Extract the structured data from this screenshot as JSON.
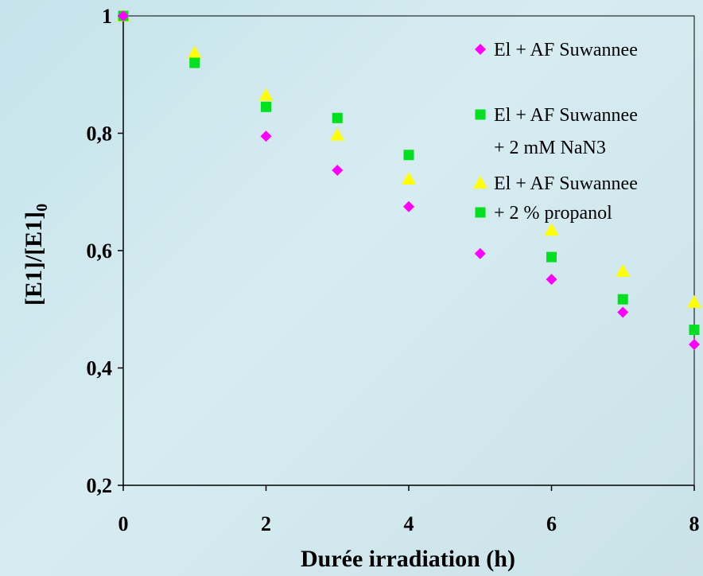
{
  "chart_data": {
    "type": "scatter",
    "title": "",
    "xlabel": "Durée irradiation (h)",
    "ylabel_main": "[E1]/[E1]",
    "ylabel_sub": "0",
    "xlim": [
      0,
      8
    ],
    "ylim": [
      0.2,
      1.0
    ],
    "x_ticks": [
      0,
      2,
      4,
      6,
      8
    ],
    "x_tick_labels": [
      "0",
      "2",
      "4",
      "6",
      "8"
    ],
    "y_ticks": [
      0.2,
      0.4,
      0.6,
      0.8,
      1.0
    ],
    "y_tick_labels": [
      "0,2",
      "0,4",
      "0,6",
      "0,8",
      "1"
    ],
    "grid": false,
    "legend_position": "top-right",
    "legend_lines": [
      {
        "text": "El + AF Suwannee",
        "marker": "diamond",
        "color": "#ff00ff"
      },
      {
        "text": "El + AF Suwannee",
        "marker": "square",
        "color": "#00e020"
      },
      {
        "text": "+ 2 mM NaN3",
        "marker": null,
        "color": null
      },
      {
        "text": "El + AF Suwannee",
        "marker": "triangle",
        "color": "#ffff00"
      },
      {
        "text": "+ 2 % propanol",
        "marker": "square",
        "color": "#00e020"
      }
    ],
    "series": [
      {
        "legend_index": 0,
        "marker": "diamond",
        "color": "#ff00ff",
        "x": [
          0,
          2,
          3,
          4,
          5,
          6,
          7,
          8
        ],
        "y": [
          1.0,
          0.795,
          0.737,
          0.675,
          0.595,
          0.551,
          0.495,
          0.44
        ]
      },
      {
        "legend_index": 1,
        "marker": "square",
        "color": "#00e020",
        "x": [
          0,
          1,
          2,
          3,
          4,
          6,
          7,
          8
        ],
        "y": [
          1.0,
          0.92,
          0.845,
          0.826,
          0.763,
          0.589,
          0.517,
          0.465
        ]
      },
      {
        "legend_index": 3,
        "marker": "triangle",
        "color": "#ffff00",
        "x": [
          0,
          1,
          2,
          3,
          4,
          6,
          7,
          8
        ],
        "y": [
          1.0,
          0.937,
          0.865,
          0.797,
          0.722,
          0.635,
          0.565,
          0.512
        ]
      }
    ]
  }
}
